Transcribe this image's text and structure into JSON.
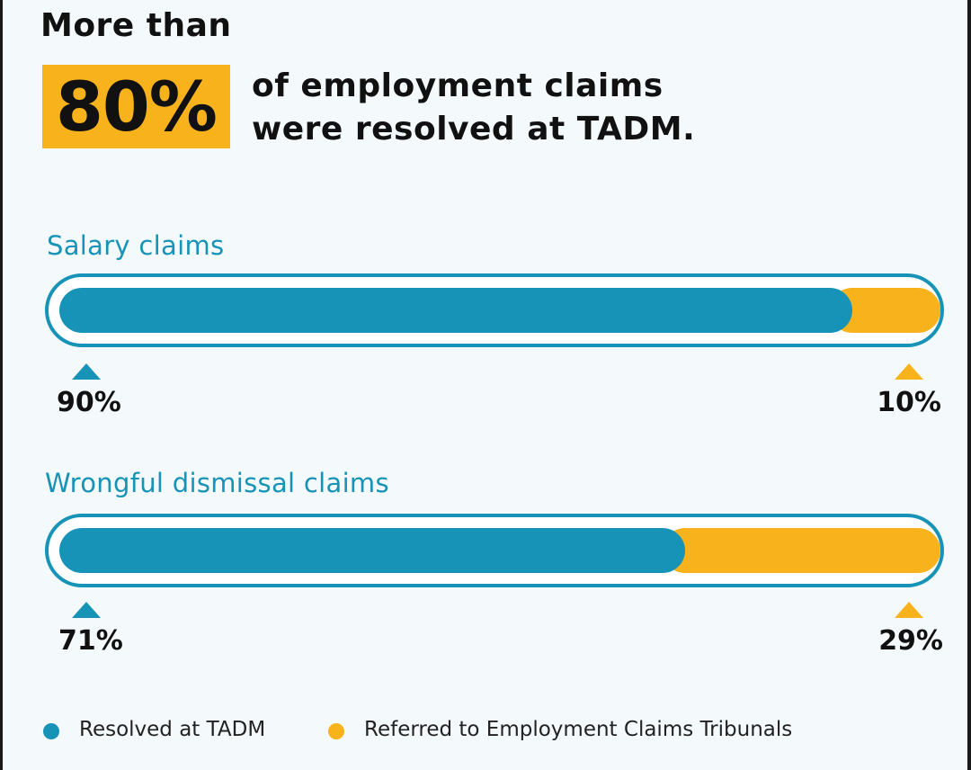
{
  "headline": {
    "prefix": "More than",
    "highlight": "80%",
    "line1": "of employment claims",
    "line2": "were resolved at TADM."
  },
  "colors": {
    "resolved": "#1893B8",
    "referred": "#F8B21C"
  },
  "chart_data": [
    {
      "type": "bar",
      "title": "Salary claims",
      "categories": [
        "Resolved at TADM",
        "Referred to Employment Claims Tribunals"
      ],
      "values": [
        90,
        10
      ],
      "labels": [
        "90%",
        "10%"
      ]
    },
    {
      "type": "bar",
      "title": "Wrongful dismissal claims",
      "categories": [
        "Resolved at TADM",
        "Referred to Employment Claims Tribunals"
      ],
      "values": [
        71,
        29
      ],
      "labels": [
        "71%",
        "29%"
      ]
    }
  ],
  "legend": {
    "resolved": "Resolved at TADM",
    "referred": "Referred to Employment Claims Tribunals"
  }
}
